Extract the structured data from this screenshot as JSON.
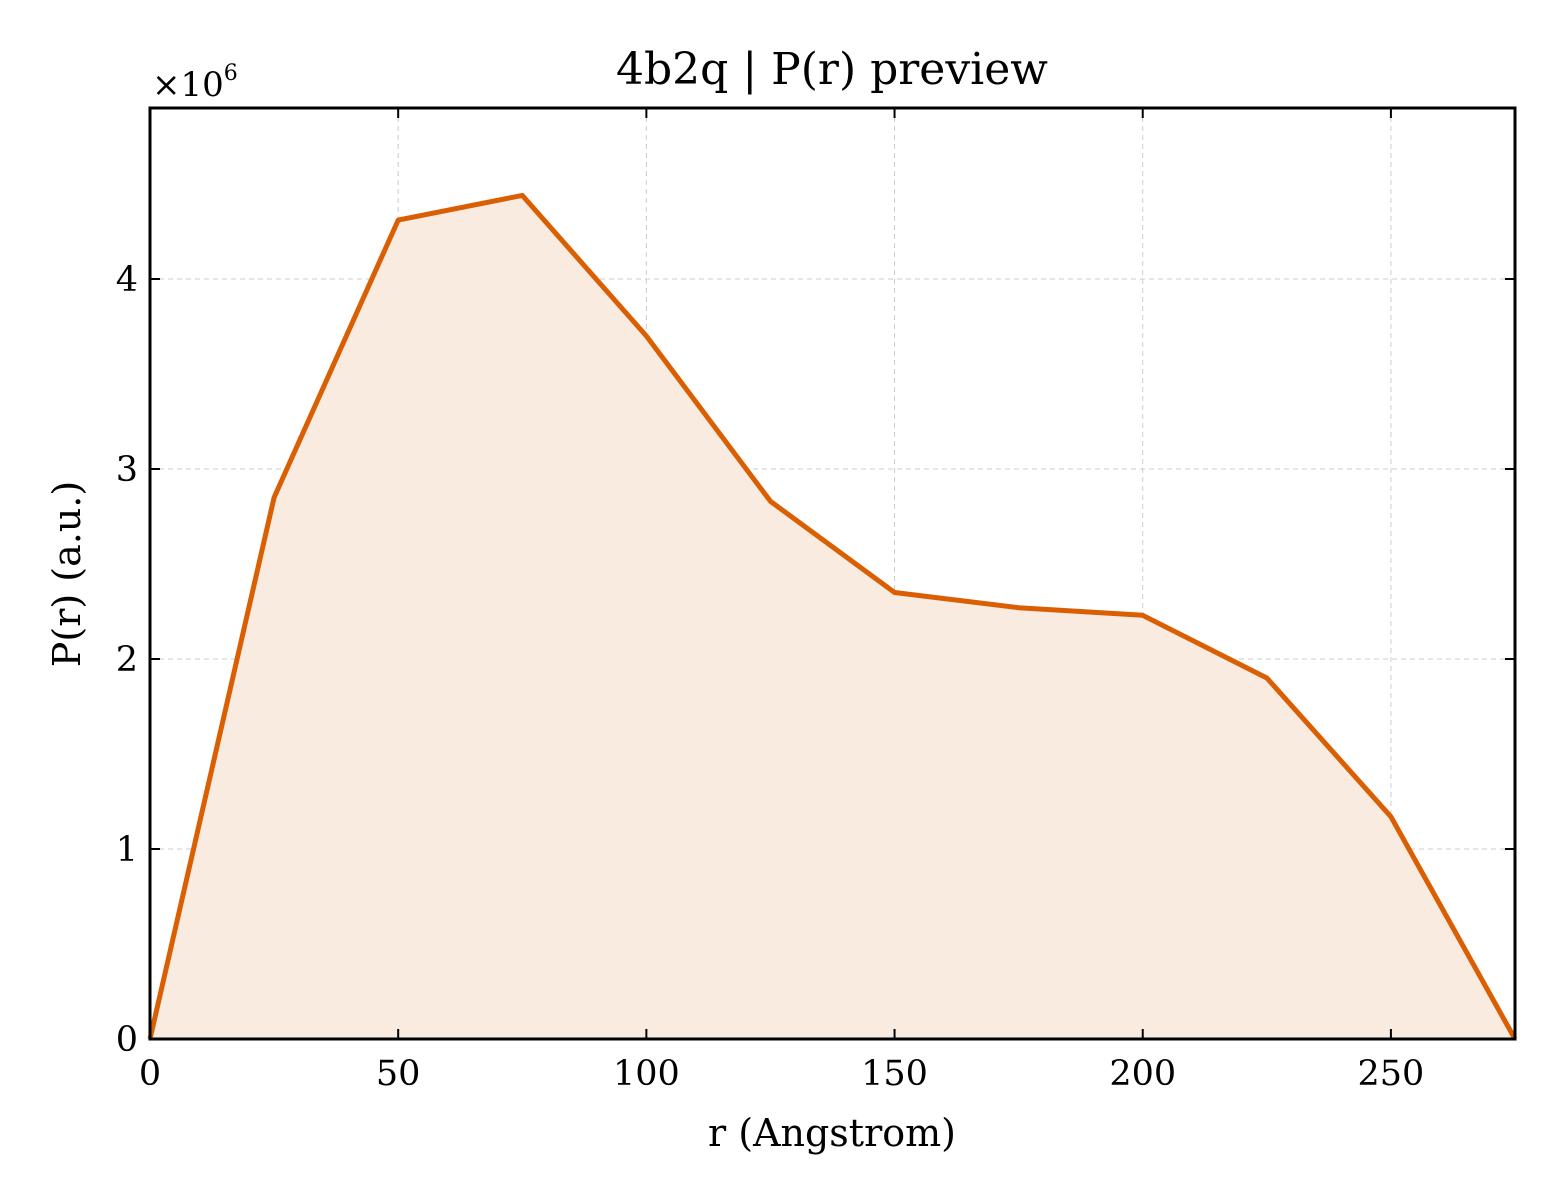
{
  "chart_data": {
    "type": "area",
    "title": "4b2q | P(r) preview",
    "xlabel": "r (Angstrom)",
    "ylabel": "P(r) (a.u.)",
    "y_multiplier": {
      "base": "×10",
      "exponent": "6"
    },
    "xlim": [
      0,
      275
    ],
    "ylim": [
      0,
      4.9
    ],
    "x_ticks": [
      0,
      50,
      100,
      150,
      200,
      250
    ],
    "x_tick_labels": [
      "0",
      "50",
      "100",
      "150",
      "200",
      "250"
    ],
    "y_ticks": [
      0,
      1,
      2,
      3,
      4
    ],
    "y_tick_labels": [
      "0",
      "1",
      "2",
      "3",
      "4"
    ],
    "grid": true,
    "series": [
      {
        "x": [
          0,
          25,
          50,
          75,
          100,
          125,
          150,
          175,
          200,
          225,
          250,
          275
        ],
        "y": [
          0,
          2.85,
          4.31,
          4.44,
          3.7,
          2.83,
          2.35,
          2.27,
          2.23,
          1.9,
          1.17,
          0
        ],
        "color": "#d95f02",
        "fill_color": "#f9ebe0"
      }
    ]
  }
}
